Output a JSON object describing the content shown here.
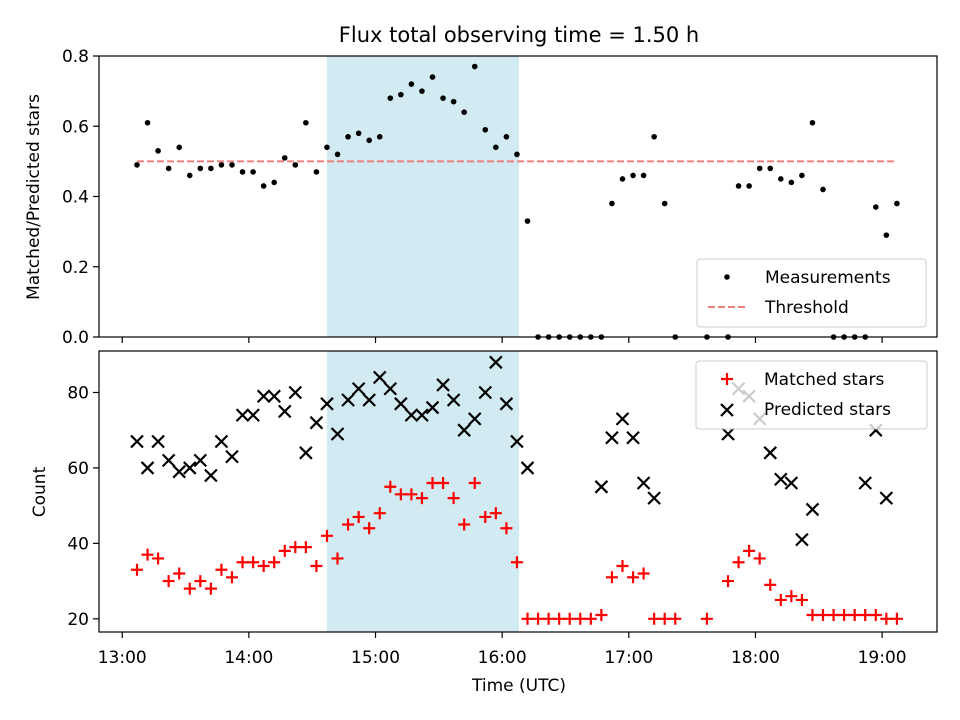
{
  "figure": {
    "title": "Flux total observing time = 1.50 h",
    "xlabel": "Time (UTC)",
    "x_tick_labels": [
      "13:00",
      "14:00",
      "15:00",
      "16:00",
      "17:00",
      "18:00",
      "19:00"
    ],
    "colors": {
      "highlight": "#add8e6",
      "measurement": "#000000",
      "threshold": "#f08080",
      "matched": "#ff0000",
      "predicted": "#000000"
    }
  },
  "chart_data": [
    {
      "type": "scatter",
      "panel": "top",
      "title": "Flux total observing time = 1.50 h",
      "xlabel": "",
      "ylabel": "Matched/Predicted stars",
      "x_unit": "time of day (UTC)",
      "xlim": [
        "12:49",
        "19:26"
      ],
      "ylim": [
        0,
        0.8
      ],
      "y_ticks": [
        "0.0",
        "0.2",
        "0.4",
        "0.6",
        "0.8"
      ],
      "highlight_interval": [
        "14:37",
        "16:08"
      ],
      "legend": {
        "position": "lower right",
        "entries": [
          "Measurements",
          "Threshold"
        ]
      },
      "threshold": {
        "name": "Threshold",
        "x": [
          "13:07",
          "19:07"
        ],
        "y": 0.5
      },
      "series": [
        {
          "name": "Measurements",
          "x": [
            "13:07",
            "13:12",
            "13:17",
            "13:22",
            "13:27",
            "13:32",
            "13:37",
            "13:42",
            "13:47",
            "13:52",
            "13:57",
            "14:02",
            "14:07",
            "14:12",
            "14:17",
            "14:22",
            "14:27",
            "14:32",
            "14:37",
            "14:42",
            "14:47",
            "14:52",
            "14:57",
            "15:02",
            "15:07",
            "15:12",
            "15:17",
            "15:22",
            "15:27",
            "15:32",
            "15:37",
            "15:42",
            "15:47",
            "15:52",
            "15:57",
            "16:02",
            "16:07",
            "16:12",
            "16:17",
            "16:22",
            "16:27",
            "16:32",
            "16:37",
            "16:42",
            "16:47",
            "16:52",
            "16:57",
            "17:02",
            "17:07",
            "17:12",
            "17:17",
            "17:22",
            "17:37",
            "17:47",
            "17:52",
            "17:57",
            "18:02",
            "18:07",
            "18:12",
            "18:17",
            "18:22",
            "18:27",
            "18:32",
            "18:37",
            "18:42",
            "18:47",
            "18:52",
            "18:57",
            "19:02",
            "19:07"
          ],
          "y": [
            0.49,
            0.61,
            0.53,
            0.48,
            0.54,
            0.46,
            0.48,
            0.48,
            0.49,
            0.49,
            0.47,
            0.47,
            0.43,
            0.44,
            0.51,
            0.49,
            0.61,
            0.47,
            0.54,
            0.52,
            0.57,
            0.58,
            0.56,
            0.57,
            0.68,
            0.69,
            0.72,
            0.7,
            0.74,
            0.68,
            0.67,
            0.64,
            0.77,
            0.59,
            0.54,
            0.57,
            0.52,
            0.33,
            0,
            0,
            0,
            0,
            0,
            0,
            0,
            0.38,
            0.45,
            0.46,
            0.46,
            0.57,
            0.38,
            0,
            0,
            0,
            0.43,
            0.43,
            0.48,
            0.48,
            0.45,
            0.44,
            0.46,
            0.61,
            0.42,
            0,
            0,
            0,
            0,
            0.37,
            0.29,
            0.38
          ]
        }
      ]
    },
    {
      "type": "scatter",
      "panel": "bottom",
      "xlabel": "Time (UTC)",
      "ylabel": "Count",
      "x_unit": "time of day (UTC)",
      "xlim": [
        "12:49",
        "19:26"
      ],
      "ylim": [
        16.5,
        91
      ],
      "y_ticks": [
        "20",
        "40",
        "60",
        "80"
      ],
      "highlight_interval": [
        "14:37",
        "16:08"
      ],
      "legend": {
        "position": "upper right",
        "entries": [
          "Matched stars",
          "Predicted stars"
        ]
      },
      "series": [
        {
          "name": "Matched stars",
          "marker": "+",
          "x": [
            "13:07",
            "13:12",
            "13:17",
            "13:22",
            "13:27",
            "13:32",
            "13:37",
            "13:42",
            "13:47",
            "13:52",
            "13:57",
            "14:02",
            "14:07",
            "14:12",
            "14:17",
            "14:22",
            "14:27",
            "14:32",
            "14:37",
            "14:42",
            "14:47",
            "14:52",
            "14:57",
            "15:02",
            "15:07",
            "15:12",
            "15:17",
            "15:22",
            "15:27",
            "15:32",
            "15:37",
            "15:42",
            "15:47",
            "15:52",
            "15:57",
            "16:02",
            "16:07",
            "16:12",
            "16:17",
            "16:22",
            "16:27",
            "16:32",
            "16:37",
            "16:42",
            "16:47",
            "16:52",
            "16:57",
            "17:02",
            "17:07",
            "17:12",
            "17:17",
            "17:22",
            "17:37",
            "17:47",
            "17:52",
            "17:57",
            "18:02",
            "18:07",
            "18:12",
            "18:17",
            "18:22",
            "18:27",
            "18:32",
            "18:37",
            "18:42",
            "18:47",
            "18:52",
            "18:57",
            "19:02",
            "19:07"
          ],
          "y": [
            33,
            37,
            36,
            30,
            32,
            28,
            30,
            28,
            33,
            31,
            35,
            35,
            34,
            35,
            38,
            39,
            39,
            34,
            42,
            36,
            45,
            47,
            44,
            48,
            55,
            53,
            53,
            52,
            56,
            56,
            52,
            45,
            56,
            47,
            48,
            44,
            35,
            20,
            20,
            20,
            20,
            20,
            20,
            20,
            21,
            31,
            34,
            31,
            32,
            20,
            20,
            20,
            20,
            30,
            35,
            38,
            36,
            29,
            25,
            26,
            25,
            21,
            21,
            21,
            21,
            21,
            21,
            21,
            20,
            20
          ]
        },
        {
          "name": "Predicted stars",
          "marker": "x",
          "x": [
            "13:07",
            "13:12",
            "13:17",
            "13:22",
            "13:27",
            "13:32",
            "13:37",
            "13:42",
            "13:47",
            "13:52",
            "13:57",
            "14:02",
            "14:07",
            "14:12",
            "14:17",
            "14:22",
            "14:27",
            "14:32",
            "14:37",
            "14:42",
            "14:47",
            "14:52",
            "14:57",
            "15:02",
            "15:07",
            "15:12",
            "15:17",
            "15:22",
            "15:27",
            "15:32",
            "15:37",
            "15:42",
            "15:47",
            "15:52",
            "15:57",
            "16:02",
            "16:07",
            "16:12",
            "16:47",
            "16:52",
            "16:57",
            "17:02",
            "17:07",
            "17:12",
            "17:47",
            "17:52",
            "17:57",
            "18:02",
            "18:07",
            "18:12",
            "18:17",
            "18:22",
            "18:27",
            "18:52",
            "18:57",
            "19:02"
          ],
          "y": [
            67,
            60,
            67,
            62,
            59,
            60,
            62,
            58,
            67,
            63,
            74,
            74,
            79,
            79,
            75,
            80,
            64,
            72,
            77,
            69,
            78,
            81,
            78,
            84,
            81,
            77,
            74,
            74,
            76,
            82,
            78,
            70,
            73,
            80,
            88,
            77,
            67,
            60,
            55,
            68,
            73,
            68,
            56,
            52,
            69,
            81,
            79,
            73,
            64,
            57,
            56,
            41,
            49,
            56,
            70,
            52
          ]
        }
      ]
    }
  ]
}
